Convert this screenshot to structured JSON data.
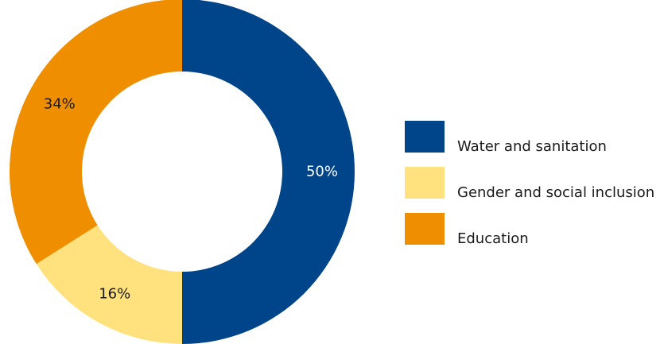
{
  "chart_data": {
    "type": "pie",
    "variant": "donut",
    "categories": [
      "Water and sanitation",
      "Gender and social inclusion",
      "Education"
    ],
    "values": [
      50,
      16,
      34
    ],
    "value_labels": [
      "50%",
      "16%",
      "34%"
    ],
    "colors": [
      "#00448A",
      "#FFE17D",
      "#EF8F00"
    ],
    "label_colors": [
      "#ffffff",
      "#1a1a1a",
      "#1a1a1a"
    ],
    "start_angle": "12 o'clock",
    "direction": "clockwise",
    "legend": {
      "position": "right",
      "items": [
        "Water and sanitation",
        "Gender and social inclusion",
        "Education"
      ]
    }
  }
}
